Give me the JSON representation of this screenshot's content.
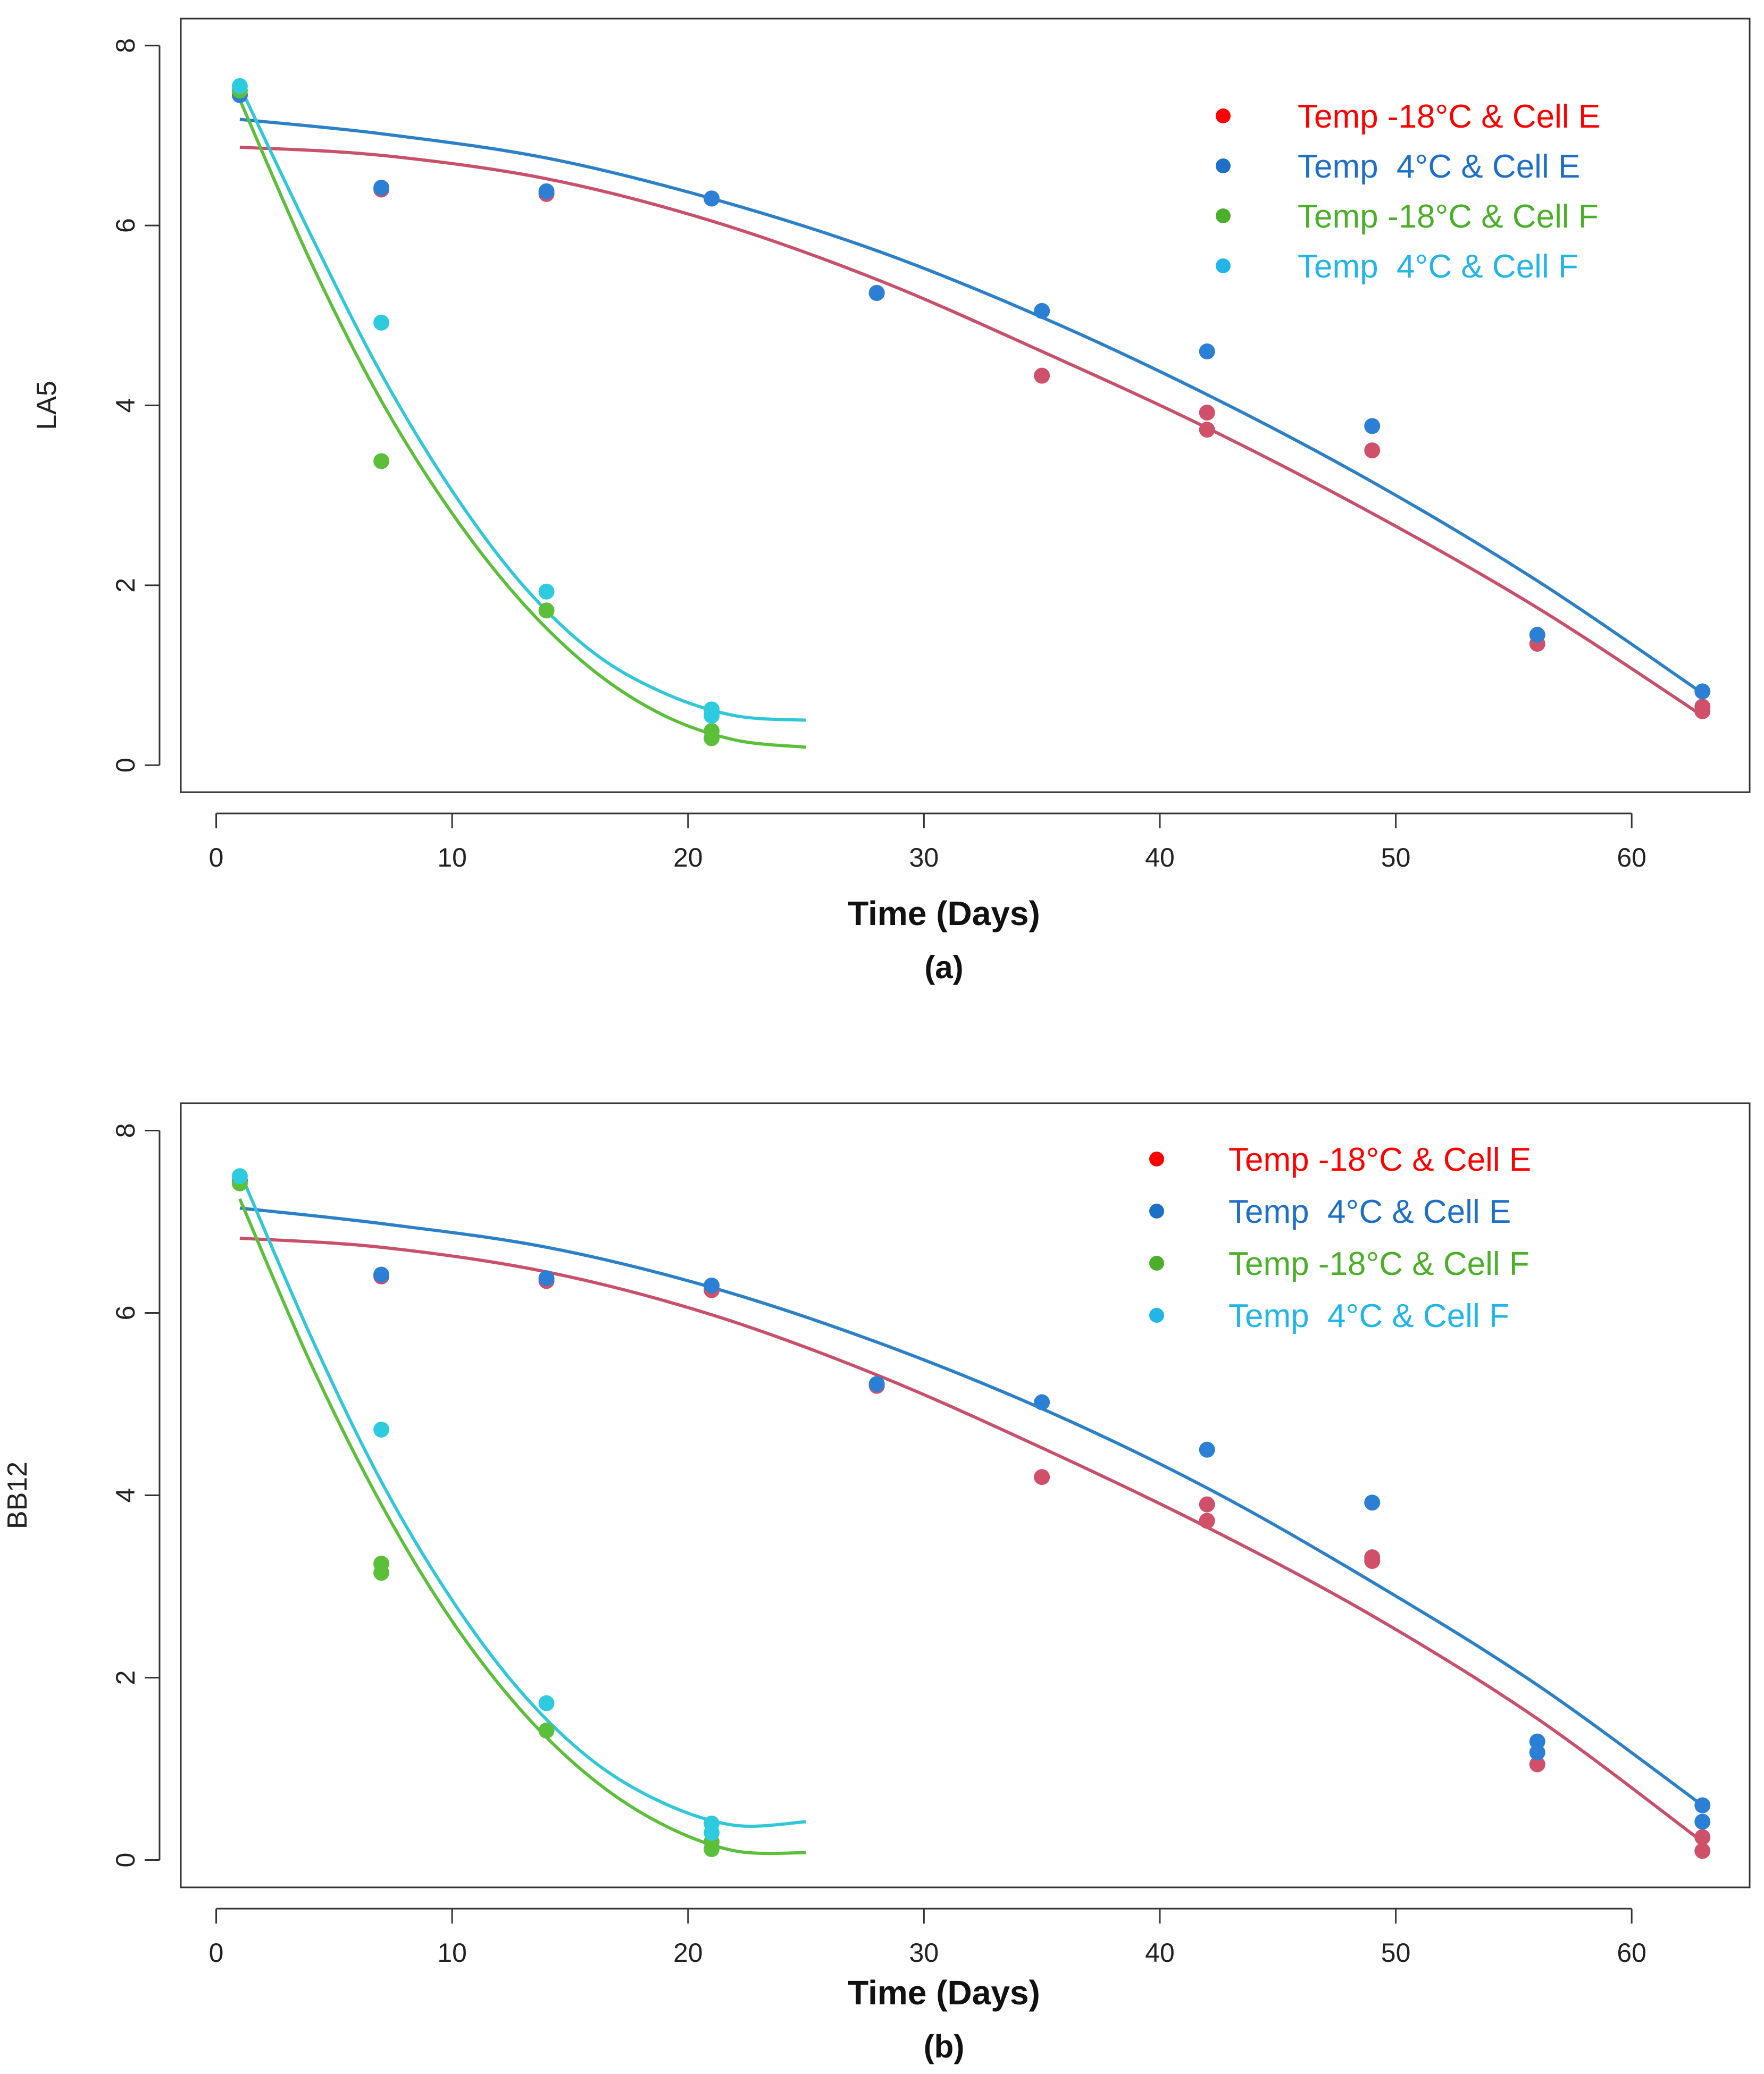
{
  "chart_data": [
    {
      "id": "a",
      "type": "scatter",
      "ylabel": "LA5",
      "xlabel": "Time (Days)",
      "caption": "(a)",
      "xlim": [
        -1.5,
        65
      ],
      "ylim": [
        -0.3,
        8.3
      ],
      "xticks": [
        0,
        10,
        20,
        30,
        40,
        50,
        60
      ],
      "yticks": [
        0,
        2,
        4,
        6,
        8
      ],
      "legend_position": "top-right",
      "series": [
        {
          "name": "Temp -18°C & Cell E",
          "color": "#ff0000",
          "point_color": "#d0506a",
          "line_color": "#c8506a",
          "points": [
            [
              1,
              7.45
            ],
            [
              7,
              6.4
            ],
            [
              14,
              6.35
            ],
            [
              21,
              6.3
            ],
            [
              28,
              5.25
            ],
            [
              35,
              4.33
            ],
            [
              42,
              3.92
            ],
            [
              42,
              3.73
            ],
            [
              49,
              3.5
            ],
            [
              56,
              1.35
            ],
            [
              63,
              0.6
            ],
            [
              63,
              0.65
            ]
          ],
          "curve": [
            [
              1,
              6.87
            ],
            [
              7,
              6.78
            ],
            [
              14,
              6.52
            ],
            [
              21,
              6.05
            ],
            [
              28,
              5.4
            ],
            [
              35,
              4.6
            ],
            [
              42,
              3.75
            ],
            [
              49,
              2.8
            ],
            [
              56,
              1.75
            ],
            [
              63,
              0.55
            ]
          ]
        },
        {
          "name": "Temp  4°C & Cell E",
          "color": "#1e6fc8",
          "point_color": "#2b7fd4",
          "line_color": "#2b80c8",
          "points": [
            [
              1,
              7.45
            ],
            [
              7,
              6.42
            ],
            [
              14,
              6.38
            ],
            [
              21,
              6.3
            ],
            [
              28,
              5.25
            ],
            [
              35,
              5.05
            ],
            [
              42,
              4.6
            ],
            [
              49,
              3.77
            ],
            [
              56,
              1.45
            ],
            [
              63,
              0.82
            ]
          ],
          "curve": [
            [
              1,
              7.18
            ],
            [
              7,
              7.02
            ],
            [
              14,
              6.75
            ],
            [
              21,
              6.3
            ],
            [
              28,
              5.72
            ],
            [
              35,
              4.98
            ],
            [
              42,
              4.12
            ],
            [
              49,
              3.15
            ],
            [
              56,
              2.05
            ],
            [
              63,
              0.8
            ]
          ]
        },
        {
          "name": "Temp -18°C & Cell F",
          "color": "#4caf2a",
          "point_color": "#5cbf3a",
          "line_color": "#5cbf3a",
          "points": [
            [
              1,
              7.5
            ],
            [
              7,
              3.38
            ],
            [
              14,
              1.72
            ],
            [
              21,
              0.3
            ],
            [
              21,
              0.38
            ]
          ],
          "curve": [
            [
              1,
              7.4
            ],
            [
              4,
              5.6
            ],
            [
              7,
              4.05
            ],
            [
              10,
              2.8
            ],
            [
              13,
              1.8
            ],
            [
              16,
              1.05
            ],
            [
              19,
              0.55
            ],
            [
              22,
              0.28
            ],
            [
              25,
              0.2
            ]
          ]
        },
        {
          "name": "Temp  4°C & Cell F",
          "color": "#22b5e8",
          "point_color": "#2ecbe0",
          "line_color": "#30c8d8",
          "points": [
            [
              1,
              7.55
            ],
            [
              7,
              4.92
            ],
            [
              14,
              1.93
            ],
            [
              21,
              0.62
            ],
            [
              21,
              0.55
            ]
          ],
          "curve": [
            [
              1,
              7.55
            ],
            [
              4,
              5.9
            ],
            [
              7,
              4.35
            ],
            [
              10,
              3.05
            ],
            [
              13,
              2.0
            ],
            [
              16,
              1.25
            ],
            [
              19,
              0.8
            ],
            [
              22,
              0.55
            ],
            [
              25,
              0.5
            ]
          ]
        }
      ]
    },
    {
      "id": "b",
      "type": "scatter",
      "ylabel": "BB12",
      "xlabel": "Time (Days)",
      "caption": "(b)",
      "xlim": [
        -1.5,
        65
      ],
      "ylim": [
        -0.3,
        8.3
      ],
      "xticks": [
        0,
        10,
        20,
        30,
        40,
        50,
        60
      ],
      "yticks": [
        0,
        2,
        4,
        6,
        8
      ],
      "legend_position": "top-right",
      "series": [
        {
          "name": "Temp -18°C & Cell E",
          "color": "#ff0000",
          "point_color": "#d0506a",
          "line_color": "#c8506a",
          "points": [
            [
              1,
              7.45
            ],
            [
              7,
              6.4
            ],
            [
              14,
              6.35
            ],
            [
              21,
              6.25
            ],
            [
              28,
              5.2
            ],
            [
              35,
              4.2
            ],
            [
              42,
              3.9
            ],
            [
              42,
              3.72
            ],
            [
              49,
              3.32
            ],
            [
              49,
              3.28
            ],
            [
              56,
              1.05
            ],
            [
              63,
              0.25
            ],
            [
              63,
              0.1
            ]
          ],
          "curve": [
            [
              1,
              6.82
            ],
            [
              7,
              6.72
            ],
            [
              14,
              6.45
            ],
            [
              21,
              5.98
            ],
            [
              28,
              5.32
            ],
            [
              35,
              4.52
            ],
            [
              42,
              3.65
            ],
            [
              49,
              2.68
            ],
            [
              56,
              1.55
            ],
            [
              63,
              0.2
            ]
          ]
        },
        {
          "name": "Temp  4°C & Cell E",
          "color": "#1e6fc8",
          "point_color": "#2b7fd4",
          "line_color": "#2b80c8",
          "points": [
            [
              1,
              7.45
            ],
            [
              7,
              6.42
            ],
            [
              14,
              6.38
            ],
            [
              21,
              6.3
            ],
            [
              28,
              5.22
            ],
            [
              35,
              5.02
            ],
            [
              42,
              4.5
            ],
            [
              49,
              3.92
            ],
            [
              56,
              1.3
            ],
            [
              56,
              1.18
            ],
            [
              63,
              0.6
            ],
            [
              63,
              0.42
            ]
          ],
          "curve": [
            [
              1,
              7.15
            ],
            [
              7,
              6.98
            ],
            [
              14,
              6.72
            ],
            [
              21,
              6.28
            ],
            [
              28,
              5.68
            ],
            [
              35,
              4.95
            ],
            [
              42,
              4.08
            ],
            [
              49,
              3.05
            ],
            [
              56,
              1.92
            ],
            [
              63,
              0.6
            ]
          ]
        },
        {
          "name": "Temp -18°C & Cell F",
          "color": "#4caf2a",
          "point_color": "#5cbf3a",
          "line_color": "#5cbf3a",
          "points": [
            [
              1,
              7.42
            ],
            [
              7,
              3.25
            ],
            [
              7,
              3.15
            ],
            [
              14,
              1.42
            ],
            [
              21,
              0.2
            ],
            [
              21,
              0.12
            ]
          ],
          "curve": [
            [
              1,
              7.25
            ],
            [
              4,
              5.45
            ],
            [
              7,
              3.9
            ],
            [
              10,
              2.62
            ],
            [
              13,
              1.62
            ],
            [
              16,
              0.88
            ],
            [
              19,
              0.38
            ],
            [
              22,
              0.1
            ],
            [
              25,
              0.08
            ]
          ]
        },
        {
          "name": "Temp  4°C & Cell F",
          "color": "#22b5e8",
          "point_color": "#2ecbe0",
          "line_color": "#30c8d8",
          "points": [
            [
              1,
              7.5
            ],
            [
              7,
              4.72
            ],
            [
              14,
              1.72
            ],
            [
              21,
              0.4
            ],
            [
              21,
              0.3
            ]
          ],
          "curve": [
            [
              1,
              7.55
            ],
            [
              4,
              5.75
            ],
            [
              7,
              4.15
            ],
            [
              10,
              2.85
            ],
            [
              13,
              1.82
            ],
            [
              16,
              1.08
            ],
            [
              19,
              0.62
            ],
            [
              22,
              0.38
            ],
            [
              25,
              0.42
            ]
          ]
        }
      ]
    }
  ]
}
